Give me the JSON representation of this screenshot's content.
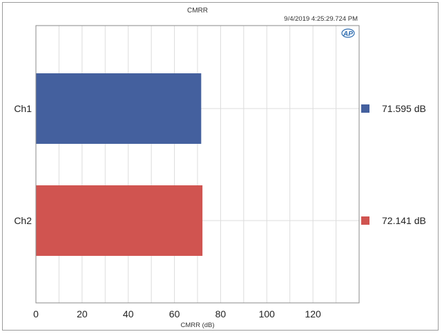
{
  "chart_data": {
    "type": "bar",
    "orientation": "horizontal",
    "title": "CMRR",
    "timestamp": "9/4/2019 4:25:29.724 PM",
    "xlabel": "CMRR (dB)",
    "categories": [
      "Ch1",
      "Ch2"
    ],
    "values": [
      71.595,
      72.141
    ],
    "xlim": [
      0,
      140
    ],
    "xticks": [
      0,
      20,
      40,
      60,
      80,
      100,
      120
    ],
    "grid": true,
    "legend_position": "right",
    "legend_labels": [
      "71.595  dB",
      "72.141  dB"
    ],
    "colors": [
      "#44609e",
      "#d05450"
    ]
  },
  "logo": {
    "text": "AP",
    "color": "#2f6db0"
  }
}
